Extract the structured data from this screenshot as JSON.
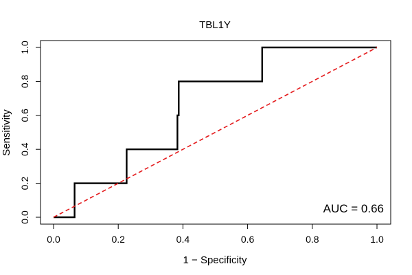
{
  "chart_data": {
    "type": "line",
    "title": "TBL1Y",
    "xlabel": "1 − Specificity",
    "ylabel": "Sensitivity",
    "xlim": [
      0,
      1
    ],
    "ylim": [
      0,
      1
    ],
    "xticks": [
      0.0,
      0.2,
      0.4,
      0.6,
      0.8,
      1.0
    ],
    "yticks": [
      0.0,
      0.2,
      0.4,
      0.6,
      0.8,
      1.0
    ],
    "xtick_labels": [
      "0.0",
      "0.2",
      "0.4",
      "0.6",
      "0.8",
      "1.0"
    ],
    "ytick_labels": [
      "0.0",
      "0.2",
      "0.4",
      "0.6",
      "0.8",
      "1.0"
    ],
    "series": [
      {
        "name": "ROC curve",
        "color": "#000000",
        "style": "solid",
        "x": [
          0.0,
          0.065,
          0.065,
          0.226,
          0.226,
          0.383,
          0.383,
          0.387,
          0.387,
          0.468,
          0.645,
          0.645,
          1.0
        ],
        "y": [
          0.0,
          0.0,
          0.2,
          0.2,
          0.4,
          0.4,
          0.6,
          0.6,
          0.8,
          0.8,
          0.8,
          1.0,
          1.0
        ]
      },
      {
        "name": "Chance line",
        "color": "#e41a1c",
        "style": "dashed",
        "x": [
          0.0,
          1.0
        ],
        "y": [
          0.0,
          1.0
        ]
      }
    ],
    "annotations": [
      {
        "text": "AUC = 0.66",
        "position": "bottom-right"
      }
    ],
    "grid": false
  }
}
